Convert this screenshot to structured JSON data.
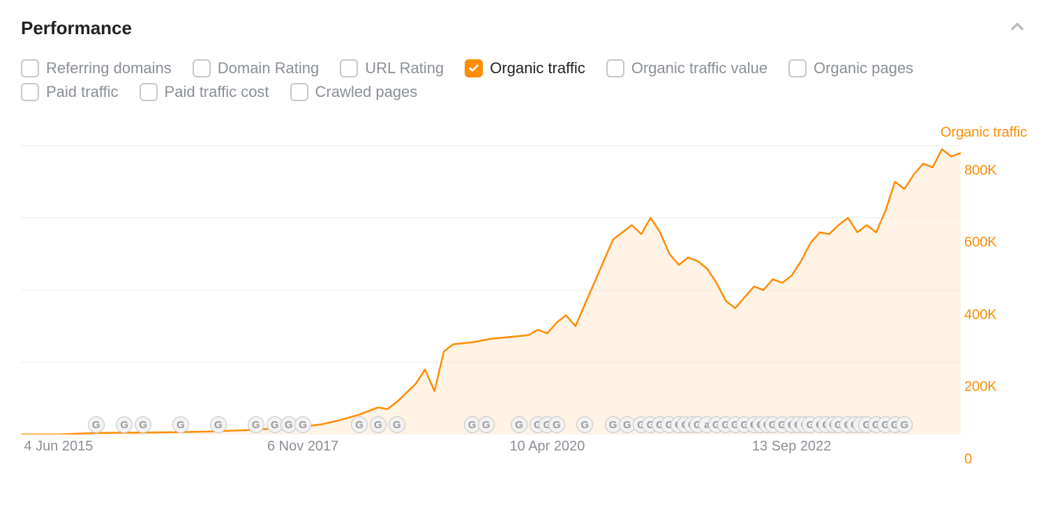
{
  "section_title": "Performance",
  "filters": [
    {
      "label": "Referring domains",
      "checked": false
    },
    {
      "label": "Domain Rating",
      "checked": false
    },
    {
      "label": "URL Rating",
      "checked": false
    },
    {
      "label": "Organic traffic",
      "checked": true
    },
    {
      "label": "Organic traffic value",
      "checked": false
    },
    {
      "label": "Organic pages",
      "checked": false
    },
    {
      "label": "Paid traffic",
      "checked": false
    },
    {
      "label": "Paid traffic cost",
      "checked": false
    },
    {
      "label": "Crawled pages",
      "checked": false
    }
  ],
  "chart": {
    "type": "area-line",
    "legend_label": "Organic traffic",
    "line_color": "#ff8c00",
    "fill_color": "#ffe9d1",
    "fill_opacity": 0.55,
    "line_width": 2.5,
    "background_color": "#ffffff",
    "grid_color": "#ececec",
    "y_axis": {
      "min": 0,
      "max": 850000,
      "tick_step": 200000,
      "ticks": [
        {
          "value": 0,
          "label": "0"
        },
        {
          "value": 200000,
          "label": "200K"
        },
        {
          "value": 400000,
          "label": "400K"
        },
        {
          "value": 600000,
          "label": "600K"
        },
        {
          "value": 800000,
          "label": "800K"
        }
      ],
      "tick_color": "#ff8c00",
      "tick_fontsize": 20
    },
    "x_axis": {
      "min": 0,
      "max": 100,
      "ticks": [
        {
          "pos": 4,
          "label": "4 Jun 2015"
        },
        {
          "pos": 30,
          "label": "6 Nov 2017"
        },
        {
          "pos": 56,
          "label": "10 Apr 2020"
        },
        {
          "pos": 82,
          "label": "13 Sep 2022"
        }
      ],
      "tick_color": "#8a8f95",
      "tick_fontsize": 20
    },
    "series": [
      {
        "x": 0,
        "y": 0
      },
      {
        "x": 4,
        "y": 0
      },
      {
        "x": 8,
        "y": 4000
      },
      {
        "x": 12,
        "y": 5000
      },
      {
        "x": 16,
        "y": 6000
      },
      {
        "x": 20,
        "y": 8000
      },
      {
        "x": 24,
        "y": 12000
      },
      {
        "x": 28,
        "y": 18000
      },
      {
        "x": 30,
        "y": 22000
      },
      {
        "x": 32,
        "y": 28000
      },
      {
        "x": 34,
        "y": 40000
      },
      {
        "x": 36,
        "y": 55000
      },
      {
        "x": 38,
        "y": 75000
      },
      {
        "x": 39,
        "y": 70000
      },
      {
        "x": 40,
        "y": 90000
      },
      {
        "x": 42,
        "y": 140000
      },
      {
        "x": 43,
        "y": 180000
      },
      {
        "x": 44,
        "y": 120000
      },
      {
        "x": 45,
        "y": 230000
      },
      {
        "x": 46,
        "y": 250000
      },
      {
        "x": 48,
        "y": 255000
      },
      {
        "x": 50,
        "y": 265000
      },
      {
        "x": 52,
        "y": 270000
      },
      {
        "x": 54,
        "y": 275000
      },
      {
        "x": 55,
        "y": 290000
      },
      {
        "x": 56,
        "y": 280000
      },
      {
        "x": 57,
        "y": 310000
      },
      {
        "x": 58,
        "y": 330000
      },
      {
        "x": 59,
        "y": 300000
      },
      {
        "x": 60,
        "y": 360000
      },
      {
        "x": 61,
        "y": 420000
      },
      {
        "x": 62,
        "y": 480000
      },
      {
        "x": 63,
        "y": 540000
      },
      {
        "x": 64,
        "y": 560000
      },
      {
        "x": 65,
        "y": 580000
      },
      {
        "x": 66,
        "y": 555000
      },
      {
        "x": 67,
        "y": 600000
      },
      {
        "x": 68,
        "y": 560000
      },
      {
        "x": 69,
        "y": 500000
      },
      {
        "x": 70,
        "y": 470000
      },
      {
        "x": 71,
        "y": 490000
      },
      {
        "x": 72,
        "y": 480000
      },
      {
        "x": 73,
        "y": 460000
      },
      {
        "x": 74,
        "y": 420000
      },
      {
        "x": 75,
        "y": 370000
      },
      {
        "x": 76,
        "y": 350000
      },
      {
        "x": 77,
        "y": 380000
      },
      {
        "x": 78,
        "y": 410000
      },
      {
        "x": 79,
        "y": 400000
      },
      {
        "x": 80,
        "y": 430000
      },
      {
        "x": 81,
        "y": 420000
      },
      {
        "x": 82,
        "y": 440000
      },
      {
        "x": 83,
        "y": 480000
      },
      {
        "x": 84,
        "y": 530000
      },
      {
        "x": 85,
        "y": 560000
      },
      {
        "x": 86,
        "y": 555000
      },
      {
        "x": 87,
        "y": 580000
      },
      {
        "x": 88,
        "y": 600000
      },
      {
        "x": 89,
        "y": 560000
      },
      {
        "x": 90,
        "y": 580000
      },
      {
        "x": 91,
        "y": 560000
      },
      {
        "x": 92,
        "y": 620000
      },
      {
        "x": 93,
        "y": 700000
      },
      {
        "x": 94,
        "y": 680000
      },
      {
        "x": 95,
        "y": 720000
      },
      {
        "x": 96,
        "y": 750000
      },
      {
        "x": 97,
        "y": 740000
      },
      {
        "x": 98,
        "y": 790000
      },
      {
        "x": 99,
        "y": 770000
      },
      {
        "x": 100,
        "y": 780000
      }
    ],
    "markers": {
      "fill_color": "#f2f2f2",
      "border_color": "#c4c4c4",
      "text_color": "#9a9a9a",
      "items": [
        {
          "pos": 8,
          "label": "G"
        },
        {
          "pos": 11,
          "label": "G"
        },
        {
          "pos": 13,
          "label": "G"
        },
        {
          "pos": 17,
          "label": "G"
        },
        {
          "pos": 21,
          "label": "G"
        },
        {
          "pos": 25,
          "label": "G"
        },
        {
          "pos": 27,
          "label": "G"
        },
        {
          "pos": 28.5,
          "label": "G"
        },
        {
          "pos": 30,
          "label": "G"
        },
        {
          "pos": 36,
          "label": "G"
        },
        {
          "pos": 38,
          "label": "G"
        },
        {
          "pos": 40,
          "label": "G"
        },
        {
          "pos": 48,
          "label": "G"
        },
        {
          "pos": 49.5,
          "label": "G"
        },
        {
          "pos": 53,
          "label": "G"
        },
        {
          "pos": 55,
          "label": "G"
        },
        {
          "pos": 56,
          "label": "G"
        },
        {
          "pos": 57,
          "label": "G"
        },
        {
          "pos": 60,
          "label": "G"
        },
        {
          "pos": 63,
          "label": "G"
        },
        {
          "pos": 64.5,
          "label": "G"
        },
        {
          "pos": 66,
          "label": "G"
        },
        {
          "pos": 67,
          "label": "G"
        },
        {
          "pos": 68,
          "label": "G"
        },
        {
          "pos": 69,
          "label": "G"
        },
        {
          "pos": 70,
          "label": "G"
        },
        {
          "pos": 70.7,
          "label": "G"
        },
        {
          "pos": 71.4,
          "label": "G"
        },
        {
          "pos": 72,
          "label": "G"
        },
        {
          "pos": 73,
          "label": "a"
        },
        {
          "pos": 74,
          "label": "G"
        },
        {
          "pos": 75,
          "label": "G"
        },
        {
          "pos": 76,
          "label": "G"
        },
        {
          "pos": 77,
          "label": "G"
        },
        {
          "pos": 78,
          "label": "G"
        },
        {
          "pos": 78.7,
          "label": "G"
        },
        {
          "pos": 79.4,
          "label": "G"
        },
        {
          "pos": 80,
          "label": "G"
        },
        {
          "pos": 81,
          "label": "G"
        },
        {
          "pos": 82,
          "label": "G"
        },
        {
          "pos": 82.7,
          "label": "G"
        },
        {
          "pos": 83.4,
          "label": "G"
        },
        {
          "pos": 84,
          "label": "G"
        },
        {
          "pos": 85,
          "label": "G"
        },
        {
          "pos": 85.7,
          "label": "G"
        },
        {
          "pos": 86.4,
          "label": "G"
        },
        {
          "pos": 87,
          "label": "G"
        },
        {
          "pos": 88,
          "label": "G"
        },
        {
          "pos": 88.7,
          "label": "G"
        },
        {
          "pos": 89.4,
          "label": "a"
        },
        {
          "pos": 90,
          "label": "G"
        },
        {
          "pos": 91,
          "label": "G"
        },
        {
          "pos": 92,
          "label": "G"
        },
        {
          "pos": 93,
          "label": "G"
        },
        {
          "pos": 94,
          "label": "G"
        }
      ]
    }
  }
}
